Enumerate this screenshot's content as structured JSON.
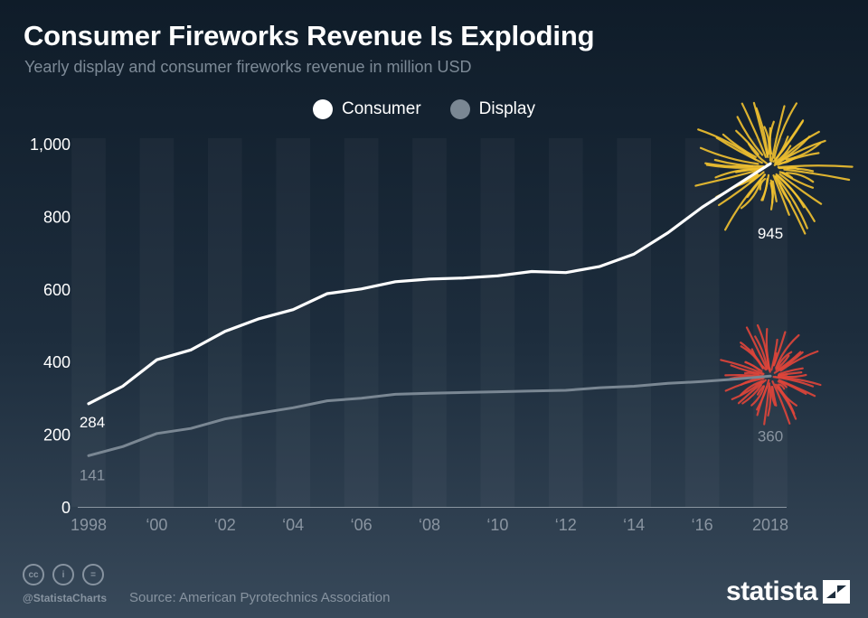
{
  "header": {
    "title": "Consumer Fireworks Revenue Is Exploding",
    "subtitle": "Yearly display and consumer fireworks revenue in million USD"
  },
  "legend": {
    "items": [
      {
        "label": "Consumer",
        "color": "#ffffff"
      },
      {
        "label": "Display",
        "color": "#7a8793"
      }
    ]
  },
  "chart_data": {
    "type": "line",
    "x": [
      1998,
      1999,
      2000,
      2001,
      2002,
      2003,
      2004,
      2005,
      2006,
      2007,
      2008,
      2009,
      2010,
      2011,
      2012,
      2013,
      2014,
      2015,
      2016,
      2017,
      2018
    ],
    "x_tick_values": [
      1998,
      2000,
      2002,
      2004,
      2006,
      2008,
      2010,
      2012,
      2014,
      2016,
      2018
    ],
    "x_tick_labels": [
      "1998",
      "‘00",
      "‘02",
      "‘04",
      "‘06",
      "‘08",
      "‘10",
      "‘12",
      "‘14",
      "‘16",
      "2018"
    ],
    "y_ticks": [
      0,
      200,
      400,
      600,
      800,
      1000
    ],
    "y_tick_labels": [
      "0",
      "200",
      "400",
      "600",
      "800",
      "1,000"
    ],
    "ylim": [
      0,
      1000
    ],
    "xlim": [
      1998,
      2018
    ],
    "grid": false,
    "legend_position": "top-center",
    "series": [
      {
        "name": "Consumer",
        "color": "#ffffff",
        "values": [
          284,
          332,
          405,
          432,
          483,
          518,
          543,
          587,
          600,
          620,
          627,
          630,
          636,
          648,
          645,
          662,
          696,
          755,
          825,
          885,
          945
        ],
        "labels": {
          "start": "284",
          "end": "945"
        }
      },
      {
        "name": "Display",
        "color": "#7a8793",
        "values": [
          141,
          166,
          202,
          216,
          242,
          258,
          273,
          292,
          299,
          310,
          313,
          315,
          317,
          319,
          321,
          328,
          332,
          340,
          345,
          352,
          360
        ],
        "labels": {
          "start": "141",
          "end": "360"
        }
      }
    ],
    "decorations": [
      {
        "name": "firework-consumer",
        "color": "#f2c230"
      },
      {
        "name": "firework-display",
        "color": "#e0453a"
      }
    ]
  },
  "footer": {
    "icons": [
      {
        "name": "cc-icon",
        "glyph": "cc"
      },
      {
        "name": "by-icon",
        "glyph": "i"
      },
      {
        "name": "nd-icon",
        "glyph": "="
      }
    ],
    "handle": "@StatistaCharts",
    "source": "Source: American Pyrotechnics Association",
    "brand": "statista"
  }
}
